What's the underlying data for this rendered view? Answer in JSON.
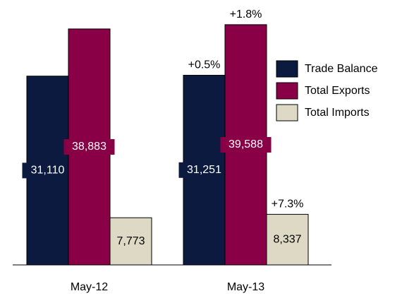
{
  "chart_data": {
    "type": "bar",
    "categories": [
      "May-12",
      "May-13"
    ],
    "series": [
      {
        "name": "Trade Balance",
        "color": "#0c1a3f",
        "label_color": "#ffffff",
        "values": [
          31110,
          31251
        ],
        "value_labels": [
          "31,110",
          "31,251"
        ],
        "change_labels": [
          null,
          "+0.5%"
        ]
      },
      {
        "name": "Total Exports",
        "color": "#8a0046",
        "label_color": "#ffffff",
        "values": [
          38883,
          39588
        ],
        "value_labels": [
          "38,883",
          "39,588"
        ],
        "change_labels": [
          null,
          "+1.8%"
        ]
      },
      {
        "name": "Total Imports",
        "color": "#ddd9c4",
        "label_color": "#000000",
        "values": [
          7773,
          8337
        ],
        "value_labels": [
          "7,773",
          "8,337"
        ],
        "change_labels": [
          null,
          "+7.3%"
        ]
      }
    ],
    "ylim": [
      0,
      43650
    ],
    "legend": "right"
  }
}
